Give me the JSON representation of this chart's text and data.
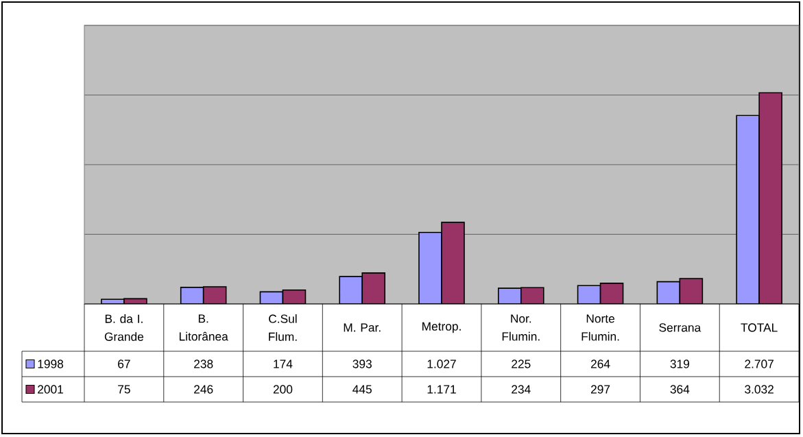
{
  "chart_data": {
    "type": "bar",
    "categories": [
      "B. da I. Grande",
      "B. Litorânea",
      "C.Sul Flum.",
      "M. Par.",
      "Metrop.",
      "Nor. Flumin.",
      "Norte Flumin.",
      "Serrana",
      "TOTAL"
    ],
    "series": [
      {
        "name": "1998",
        "color": "#9999ff",
        "values": [
          67,
          238,
          174,
          393,
          1027,
          225,
          264,
          319,
          2707
        ],
        "value_labels": [
          "67",
          "238",
          "174",
          "393",
          "1.027",
          "225",
          "264",
          "319",
          "2.707"
        ]
      },
      {
        "name": "2001",
        "color": "#993366",
        "values": [
          75,
          246,
          200,
          445,
          1171,
          234,
          297,
          364,
          3032
        ],
        "value_labels": [
          "75",
          "246",
          "200",
          "445",
          "1.171",
          "234",
          "297",
          "364",
          "3.032"
        ]
      }
    ],
    "ylim": [
      0,
      4000
    ],
    "yticks": [
      {
        "value": 0,
        "label": null
      },
      {
        "value": 1000,
        "label": null
      },
      {
        "value": 2000,
        "label": null
      },
      {
        "value": 3000,
        "label": null
      },
      {
        "value": 4000,
        "label": null
      }
    ],
    "grid": "y",
    "legend": "bottom left",
    "tick_labels": "x"
  }
}
